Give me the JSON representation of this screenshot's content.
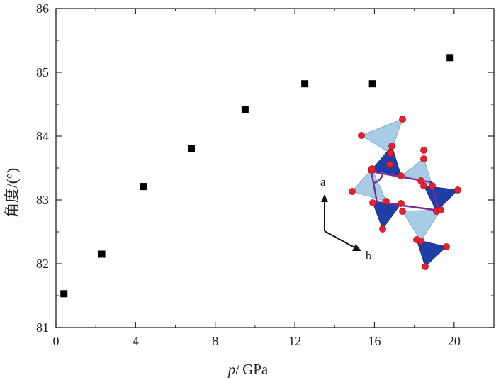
{
  "chart_data": {
    "type": "scatter",
    "xlabel_symbol": "p",
    "xlabel_sep": "/",
    "xlabel_unit": "GPa",
    "ylabel": "角度/(°)",
    "xlim": [
      0,
      22
    ],
    "ylim": [
      81,
      86
    ],
    "xticks": [
      0,
      4,
      8,
      12,
      16,
      20
    ],
    "yticks": [
      81,
      82,
      83,
      84,
      85,
      86
    ],
    "grid": false,
    "marker": "square",
    "marker_color": "#000000",
    "series": [
      {
        "x": [
          0.4,
          2.3,
          4.4,
          6.8,
          9.5,
          12.5,
          15.9,
          19.8
        ],
        "y": [
          81.53,
          82.15,
          83.21,
          83.81,
          84.42,
          84.82,
          84.82,
          85.23
        ]
      }
    ],
    "inset": {
      "axis_label_a": "a",
      "axis_label_b": "b",
      "colors": {
        "light_tetra": "#a8cce6",
        "dark_tetra": "#1f3fa8",
        "oxygen": "#e8202a",
        "cell": "#7b2b9a"
      }
    }
  }
}
